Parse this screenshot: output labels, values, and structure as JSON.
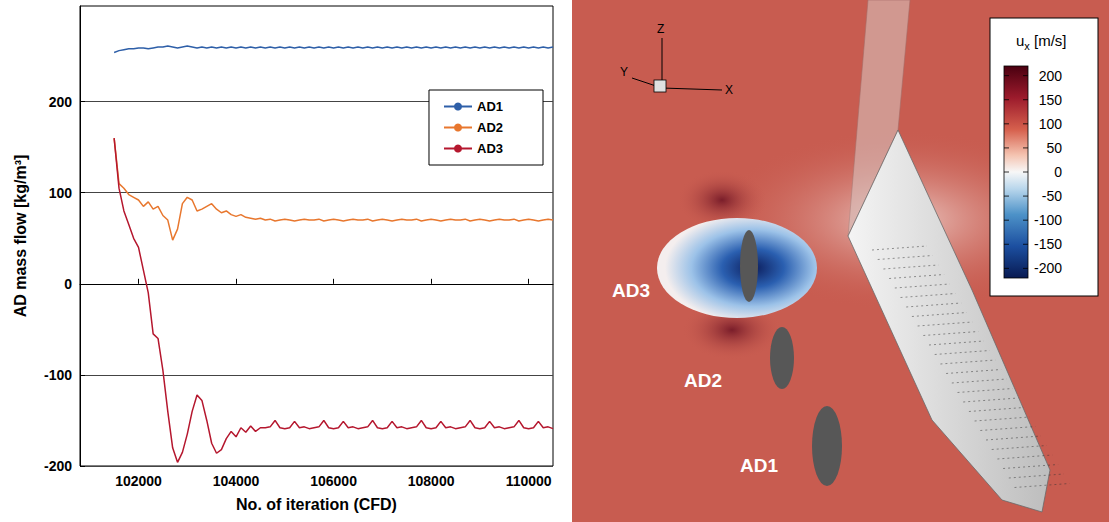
{
  "chart_data": {
    "type": "line",
    "x_label": "No. of iteration (CFD)",
    "y_label": "AD mass flow [kg/m³]",
    "xlim": [
      100800,
      110500
    ],
    "xticks": [
      102000,
      104000,
      106000,
      108000,
      110000
    ],
    "ylim": [
      -200,
      305
    ],
    "yticks": [
      -200,
      -100,
      0,
      100,
      200
    ],
    "grid": true,
    "legend": "top-right",
    "x": [
      101500,
      101600,
      101700,
      101800,
      101900,
      102000,
      102100,
      102200,
      102300,
      102400,
      102500,
      102600,
      102700,
      102800,
      102900,
      103000,
      103100,
      103200,
      103300,
      103400,
      103500,
      103600,
      103700,
      103800,
      103900,
      104000,
      104100,
      104200,
      104300,
      104400,
      104500,
      104600,
      104700,
      104800,
      104900,
      105000,
      105100,
      105200,
      105300,
      105400,
      105500,
      105600,
      105700,
      105800,
      105900,
      106000,
      106100,
      106200,
      106300,
      106400,
      106500,
      106600,
      106700,
      106800,
      106900,
      107000,
      107100,
      107200,
      107300,
      107400,
      107500,
      107600,
      107700,
      107800,
      107900,
      108000,
      108100,
      108200,
      108300,
      108400,
      108500,
      108600,
      108700,
      108800,
      108900,
      109000,
      109100,
      109200,
      109300,
      109400,
      109500,
      109600,
      109700,
      109800,
      109900,
      110000,
      110100,
      110200,
      110300,
      110400,
      110500
    ],
    "series": [
      {
        "name": "AD1",
        "color": "#2e5fa8",
        "values": [
          254,
          256,
          257,
          258,
          258,
          259,
          259,
          258,
          259,
          260,
          260,
          261,
          260,
          259,
          260,
          261,
          260,
          259,
          260,
          259,
          260,
          259,
          260,
          259,
          260,
          259,
          260,
          259,
          260,
          259,
          260,
          259,
          260,
          259,
          260,
          259,
          260,
          259,
          260,
          259,
          260,
          259,
          260,
          259,
          260,
          259,
          260,
          259,
          260,
          259,
          260,
          259,
          260,
          259,
          260,
          259,
          260,
          259,
          260,
          259,
          260,
          259,
          260,
          259,
          260,
          259,
          260,
          259,
          260,
          259,
          260,
          259,
          260,
          259,
          260,
          259,
          260,
          259,
          260,
          259,
          260,
          259,
          260,
          259,
          260,
          259,
          260,
          259,
          260,
          259,
          260
        ]
      },
      {
        "name": "AD2",
        "color": "#e8772e",
        "values": [
          160,
          110,
          105,
          98,
          95,
          92,
          85,
          90,
          82,
          85,
          75,
          70,
          48,
          60,
          88,
          95,
          92,
          80,
          82,
          85,
          88,
          82,
          78,
          80,
          76,
          74,
          76,
          73,
          72,
          71,
          72,
          70,
          71,
          69,
          70,
          71,
          70,
          69,
          70,
          71,
          70,
          70,
          71,
          69,
          70,
          71,
          70,
          69,
          70,
          71,
          70,
          70,
          71,
          69,
          70,
          71,
          70,
          69,
          70,
          71,
          70,
          70,
          71,
          69,
          70,
          71,
          70,
          69,
          70,
          71,
          70,
          70,
          71,
          69,
          70,
          71,
          70,
          69,
          70,
          71,
          70,
          70,
          71,
          69,
          70,
          71,
          70,
          69,
          70,
          71,
          70
        ]
      },
      {
        "name": "AD3",
        "color": "#b5172e",
        "values": [
          160,
          105,
          80,
          65,
          50,
          40,
          15,
          -10,
          -55,
          -60,
          -95,
          -140,
          -180,
          -196,
          -185,
          -165,
          -140,
          -122,
          -128,
          -150,
          -175,
          -186,
          -182,
          -170,
          -162,
          -168,
          -158,
          -163,
          -156,
          -162,
          -158,
          -158,
          -157,
          -150,
          -158,
          -159,
          -158,
          -151,
          -158,
          -157,
          -159,
          -158,
          -157,
          -150,
          -158,
          -159,
          -158,
          -151,
          -158,
          -157,
          -159,
          -158,
          -157,
          -150,
          -158,
          -159,
          -158,
          -151,
          -158,
          -157,
          -159,
          -158,
          -157,
          -150,
          -158,
          -159,
          -158,
          -151,
          -158,
          -157,
          -159,
          -158,
          -157,
          -150,
          -158,
          -159,
          -158,
          -151,
          -158,
          -157,
          -159,
          -158,
          -157,
          -150,
          -158,
          -159,
          -158,
          -151,
          -158,
          -157,
          -159
        ]
      }
    ]
  },
  "visualization": {
    "disc_labels": [
      "AD3",
      "AD2",
      "AD1"
    ],
    "axis_triad": [
      "Z",
      "Y",
      "X"
    ],
    "colorbar": {
      "title_base": "u",
      "title_subscript": "x",
      "title_unit": "[m/s]",
      "range": [
        -220,
        220
      ],
      "ticks": [
        200,
        150,
        100,
        50,
        0,
        -50,
        -100,
        -150,
        -200
      ]
    }
  }
}
